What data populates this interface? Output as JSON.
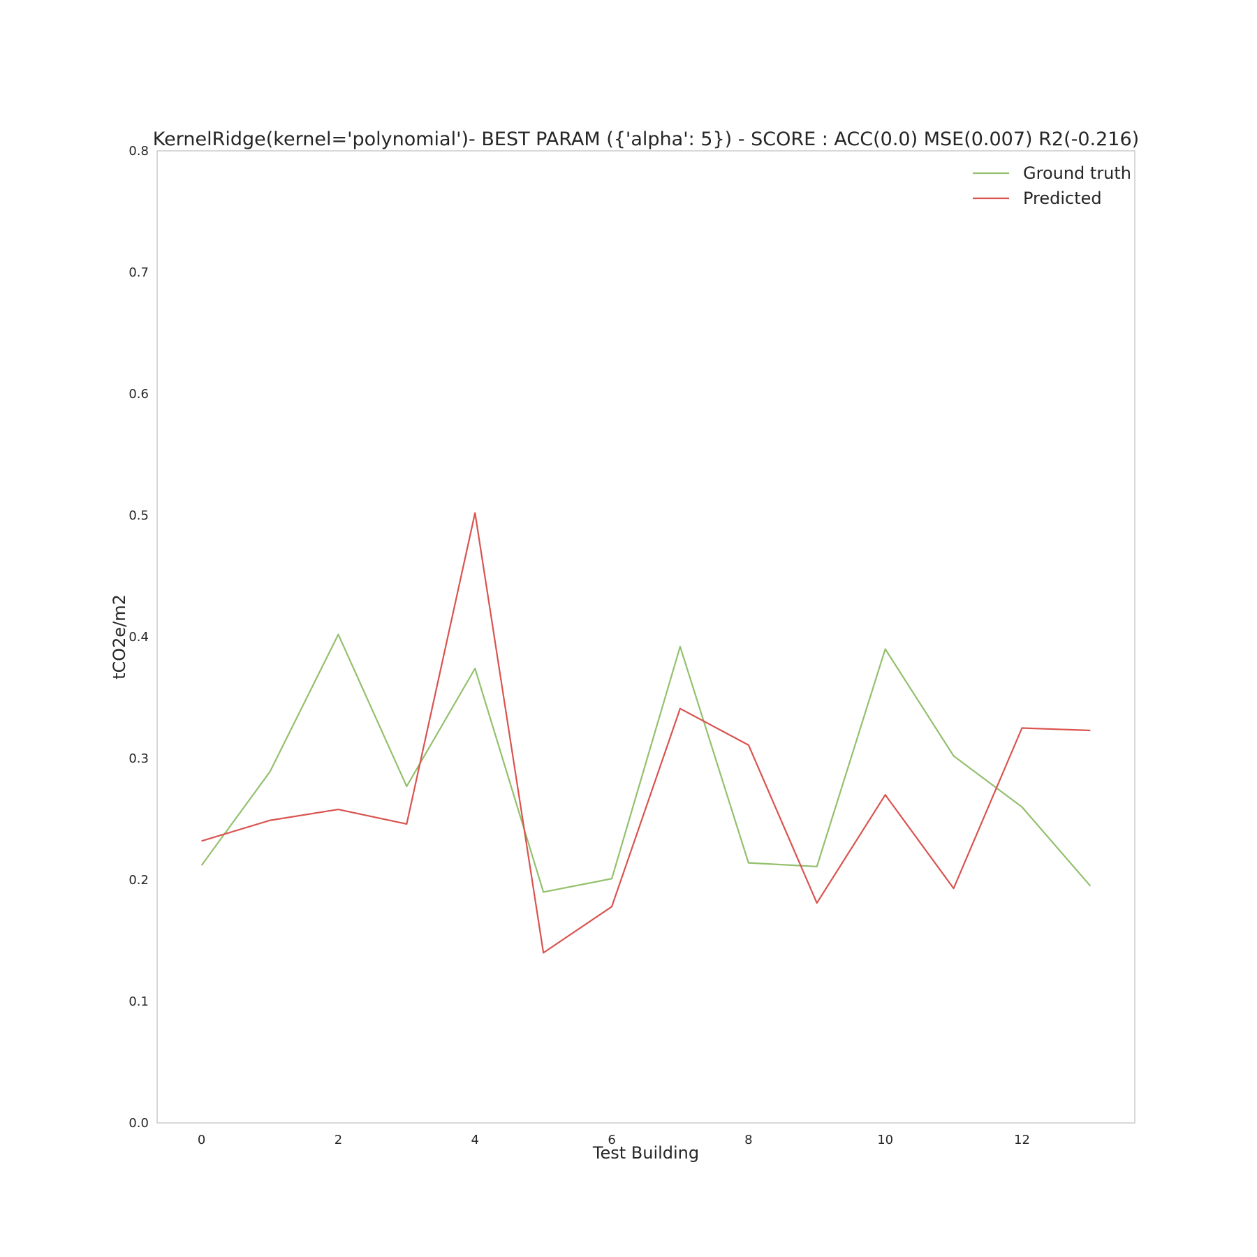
{
  "chart_data": {
    "type": "line",
    "title": "KernelRidge(kernel='polynomial')- BEST PARAM ({'alpha': 5}) - SCORE : ACC(0.0) MSE(0.007) R2(-0.216)",
    "xlabel": "Test Building",
    "ylabel": "tCO2e/m2",
    "xlim": [
      -0.65,
      13.65
    ],
    "ylim": [
      0.0,
      0.8
    ],
    "x_ticks": [
      0,
      2,
      4,
      6,
      8,
      10,
      12
    ],
    "y_ticks": [
      0.0,
      0.1,
      0.2,
      0.3,
      0.4,
      0.5,
      0.6,
      0.7,
      0.8
    ],
    "x_tick_labels": [
      "0",
      "2",
      "4",
      "6",
      "8",
      "10",
      "12"
    ],
    "y_tick_labels": [
      "0.0",
      "0.1",
      "0.2",
      "0.3",
      "0.4",
      "0.5",
      "0.6",
      "0.7",
      "0.8"
    ],
    "grid": false,
    "legend_position": "top-right",
    "x": [
      0,
      1,
      2,
      3,
      4,
      5,
      6,
      7,
      8,
      9,
      10,
      11,
      12,
      13
    ],
    "series": [
      {
        "name": "Ground truth",
        "color": "#93c06e",
        "values": [
          0.212,
          0.289,
          0.402,
          0.277,
          0.374,
          0.19,
          0.201,
          0.392,
          0.214,
          0.211,
          0.39,
          0.302,
          0.26,
          0.195
        ]
      },
      {
        "name": "Predicted",
        "color": "#d9534f",
        "values": [
          0.232,
          0.249,
          0.258,
          0.246,
          0.502,
          0.14,
          0.178,
          0.341,
          0.311,
          0.181,
          0.27,
          0.193,
          0.325,
          0.323
        ]
      }
    ]
  }
}
